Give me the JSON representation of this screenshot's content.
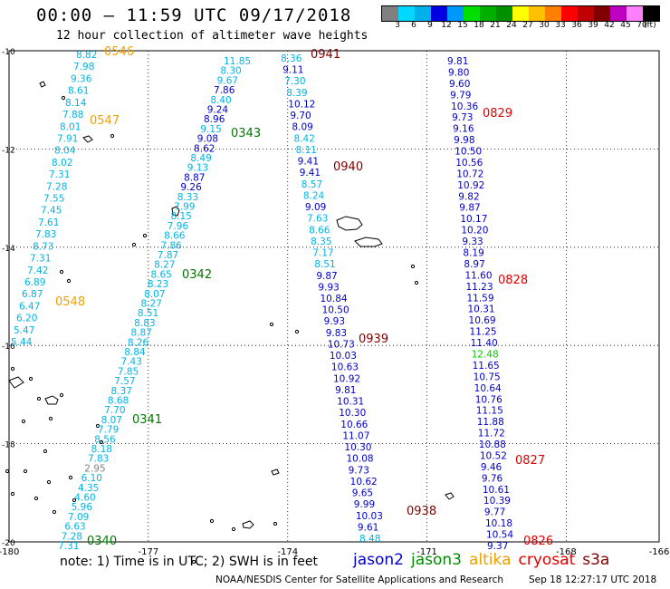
{
  "header": {
    "title": "00:00 – 11:59 UTC 09/17/2018",
    "subtitle": "12 hour collection of altimeter wave heights"
  },
  "colorbar": {
    "labels": [
      "3",
      "6",
      "9",
      "12",
      "15",
      "18",
      "21",
      "24",
      "27",
      "30",
      "33",
      "36",
      "39",
      "42",
      "45",
      "70",
      "(ft)"
    ],
    "colors": [
      "#808080",
      "#00d8ff",
      "#00b0e8",
      "#0000e0",
      "#0098ff",
      "#00e000",
      "#00b000",
      "#009000",
      "#ffff00",
      "#ffc000",
      "#ff8000",
      "#ff0000",
      "#c00000",
      "#800000",
      "#c000c0",
      "#ff80ff",
      "#000000"
    ]
  },
  "map": {
    "lon_range": [
      -180,
      -166
    ],
    "lat_range": [
      -20,
      -10
    ],
    "lon_ticks": [
      "-180",
      "-177",
      "-174",
      "-171",
      "-168",
      "-166"
    ],
    "lat_ticks": [
      "-10",
      "-12",
      "-14",
      "-16",
      "-18",
      "-20"
    ],
    "colors": {
      "cyan": "#00b4e6",
      "blue": "#0000c8",
      "green": "#008c00",
      "gray": "#808080",
      "time_orange": "#f0a000",
      "time_green": "#007800",
      "time_darkred": "#800000",
      "time_red": "#e00000"
    },
    "tracks": [
      {
        "id": "track1",
        "color_key": "cyan",
        "values": [
          "8.82",
          "7.98",
          "9.36",
          "8.61",
          "8.14",
          "7.88",
          "8.01",
          "7.91",
          "8.04",
          "8.02",
          "7.31",
          "7.28",
          "7.55",
          "7.45",
          "7.61",
          "7.83",
          "8.73",
          "7.31",
          "7.42",
          "6.89",
          "6.87",
          "6.47",
          "6.20",
          "5.47",
          "5.44"
        ],
        "times": [
          {
            "label": "0546",
            "at": 0
          },
          {
            "label": "0547",
            "at": 6
          },
          {
            "label": "0548",
            "at": 21
          }
        ],
        "time_color": "time_orange"
      },
      {
        "id": "track2",
        "color_key": "cyan",
        "values": [
          "11.85",
          "8.30",
          "9.67",
          "7.86",
          "8.40",
          "9.24",
          "8.96",
          "9.15",
          "9.08",
          "8.62",
          "8.49",
          "9.13",
          "8.87",
          "9.26",
          "8.33",
          "7.99",
          "8.15",
          "7.96",
          "8.66",
          "7.86",
          "7.87",
          "8.27",
          "8.65",
          "8.23",
          "8.07",
          "8.27",
          "8.51",
          "8.83",
          "8.87",
          "8.26",
          "8.84",
          "7.43",
          "7.85",
          "7.57",
          "8.37",
          "8.68",
          "7.70",
          "8.07",
          "7.79",
          "8.56",
          "8.18",
          "7.83",
          "2.95",
          "6.10",
          "4.35",
          "4.60",
          "5.96",
          "7.09",
          "6.63",
          "7.28",
          "7.31"
        ],
        "highlight": {
          "at": [
            3,
            5,
            6,
            8,
            9,
            12,
            13
          ],
          "color_key": "blue"
        },
        "gray_at": [
          42
        ],
        "times": [
          {
            "label": "0343",
            "at": 7
          },
          {
            "label": "0342",
            "at": 21
          },
          {
            "label": "0341",
            "at": 37
          },
          {
            "label": "0340",
            "at": 50
          }
        ],
        "time_color": "time_green"
      },
      {
        "id": "track3",
        "color_key": "blue",
        "values": [
          "8.36",
          "9.11",
          "7.30",
          "8.39",
          "10.12",
          "9.70",
          "8.09",
          "8.42",
          "8.11",
          "9.41",
          "9.41",
          "8.57",
          "8.24",
          "9.09",
          "7.63",
          "8.66",
          "8.35",
          "7.17",
          "8.51",
          "9.87",
          "9.93",
          "10.84",
          "10.50",
          "9.93",
          "9.83",
          "10.73",
          "10.03",
          "10.63",
          "10.92",
          "9.81",
          "10.31",
          "10.30",
          "10.66",
          "11.07",
          "10.30",
          "10.08",
          "9.73",
          "10.62",
          "9.65",
          "9.99",
          "10.03",
          "9.61",
          "8.48"
        ],
        "cyan_at": [
          0,
          2,
          3,
          7,
          8,
          11,
          12,
          14,
          15,
          16,
          17,
          18,
          42
        ],
        "times": [
          {
            "label": "0941",
            "at": 0
          },
          {
            "label": "0940",
            "at": 10
          },
          {
            "label": "0939",
            "at": 25
          },
          {
            "label": "0938",
            "at": 40
          }
        ],
        "time_color": "time_darkred"
      },
      {
        "id": "track4",
        "color_key": "blue",
        "values": [
          "9.81",
          "9.80",
          "9.60",
          "9.79",
          "10.36",
          "9.73",
          "9.16",
          "9.98",
          "10.50",
          "10.56",
          "10.72",
          "10.92",
          "9.82",
          "9.87",
          "10.17",
          "10.20",
          "9.33",
          "8.19",
          "8.97",
          "11.60",
          "11.23",
          "11.59",
          "10.31",
          "10.69",
          "11.25",
          "11.40",
          "12.48",
          "11.65",
          "10.75",
          "10.64",
          "10.76",
          "11.15",
          "11.88",
          "11.72",
          "10.88",
          "10.52",
          "9.46",
          "9.76",
          "10.61",
          "10.39",
          "9.77",
          "10.18",
          "10.54",
          "9.37"
        ],
        "green_at": [
          26
        ],
        "times": [
          {
            "label": "0829",
            "at": 5
          },
          {
            "label": "0828",
            "at": 20
          },
          {
            "label": "0827",
            "at": 36
          },
          {
            "label": "0826",
            "at": 43
          }
        ],
        "time_color": "time_red"
      }
    ]
  },
  "footnote": "note: 1) Time is in UTC; 2) SWH is in feet",
  "legend": [
    {
      "label": "jason2",
      "color": "#0000c8"
    },
    {
      "label": "jason3",
      "color": "#008c00"
    },
    {
      "label": "altika",
      "color": "#f0a000"
    },
    {
      "label": "cryosat",
      "color": "#e00000"
    },
    {
      "label": "s3a",
      "color": "#800000"
    }
  ],
  "credit": "NOAA/NESDIS Center for Satellite Applications and Research",
  "timestamp": "Sep 18 12:27:17 UTC 2018"
}
